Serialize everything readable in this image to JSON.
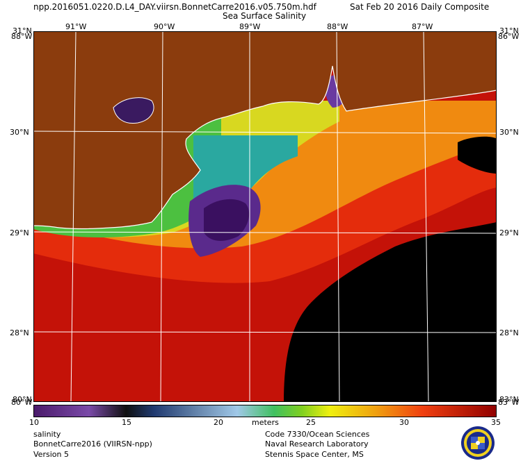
{
  "header": {
    "filename": "npp.2016051.0220.D.L4_DAY.viirsn.BonnetCarre2016.v05.750m.hdf",
    "date": "Sat Feb 20 2016 Daily Composite",
    "title": "Sea Surface Salinity"
  },
  "map": {
    "top_lon_labels": [
      "91°W",
      "90°W",
      "89°W",
      "88°W",
      "87°W"
    ],
    "corner_top_left_lat": "31°N",
    "corner_top_left_lon": "88°W",
    "corner_top_right_lat": "31°N",
    "corner_top_right_lon": "86°W",
    "corner_bottom_left_lat": "80°N",
    "corner_bottom_left_lon": "80°W",
    "corner_bottom_right_lat": "83°N",
    "corner_bottom_right_lon": "83°W",
    "left_lat_labels": [
      "30°N",
      "29°N",
      "28°N"
    ],
    "right_lat_labels": [
      "30°N",
      "29°N",
      "28°N"
    ],
    "colors": {
      "land": "#8b3c0d",
      "deep_water": "#000000",
      "high_salinity": "#c00000",
      "coastline": "#ffffff"
    }
  },
  "colorbar": {
    "ticks": [
      "10",
      "15",
      "20",
      "25",
      "30",
      "35"
    ],
    "unit": "meters",
    "min": 10,
    "max": 35
  },
  "footer": {
    "left": [
      "salinity",
      "BonnetCarre2016 (VIIRSN-npp)",
      "Version 5"
    ],
    "right": [
      "Code 7330/Ocean Sciences",
      "Naval Research Laboratory",
      "Stennis Space Center, MS"
    ]
  }
}
